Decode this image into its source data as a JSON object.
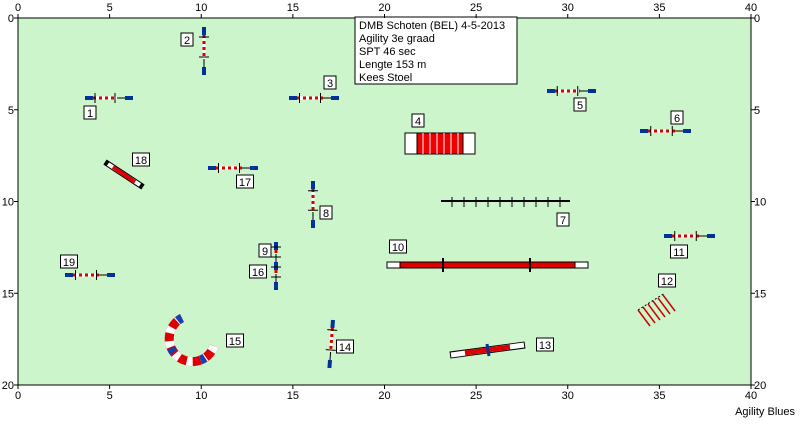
{
  "axes": {
    "x_ticks": [
      0,
      5,
      10,
      15,
      20,
      25,
      30,
      35,
      40
    ],
    "y_ticks": [
      0,
      5,
      10,
      15,
      20
    ]
  },
  "info": [
    "DMB Schoten (BEL) 4-5-2013",
    "Agility 3e graad",
    "SPT 46 sec",
    "Lengte 153 m",
    "Kees Stoel"
  ],
  "obstacles": [
    {
      "label": "1"
    },
    {
      "label": "2"
    },
    {
      "label": "3"
    },
    {
      "label": "4"
    },
    {
      "label": "5"
    },
    {
      "label": "6"
    },
    {
      "label": "7"
    },
    {
      "label": "8"
    },
    {
      "label": "9"
    },
    {
      "label": "10"
    },
    {
      "label": "11"
    },
    {
      "label": "12"
    },
    {
      "label": "13"
    },
    {
      "label": "14"
    },
    {
      "label": "15"
    },
    {
      "label": "16"
    },
    {
      "label": "17"
    },
    {
      "label": "18"
    },
    {
      "label": "19"
    }
  ],
  "footer": "Agility Blues"
}
